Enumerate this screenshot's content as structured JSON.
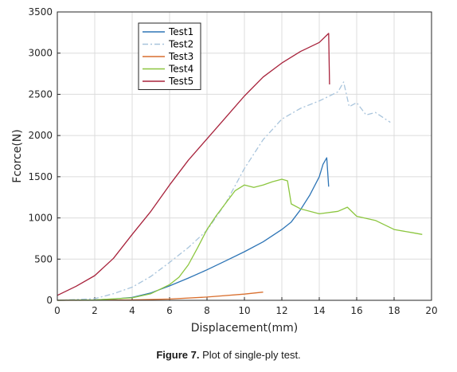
{
  "caption": {
    "label": "Figure 7.",
    "text": " Plot of single-ply test."
  },
  "chart_data": {
    "type": "line",
    "title": "",
    "xlabel": "Displacement(mm)",
    "ylabel": "Fcorce(N)",
    "xlim": [
      0,
      20
    ],
    "ylim": [
      0,
      3500
    ],
    "xticks": [
      0,
      2,
      4,
      6,
      8,
      10,
      12,
      14,
      16,
      18,
      20
    ],
    "yticks": [
      0,
      500,
      1000,
      1500,
      2000,
      2500,
      3000,
      3500
    ],
    "grid": true,
    "legend": "top-left-inside",
    "series": [
      {
        "name": "Test1",
        "color": "#2e75b6",
        "dash": "solid",
        "x": [
          0,
          2,
          3,
          4,
          5,
          6,
          7,
          8,
          9,
          10,
          11,
          12,
          12.5,
          13,
          13.5,
          14,
          14.2,
          14.4,
          14.5
        ],
        "y": [
          0,
          5,
          15,
          35,
          90,
          175,
          270,
          370,
          480,
          590,
          710,
          860,
          950,
          1100,
          1280,
          1500,
          1650,
          1730,
          1380
        ]
      },
      {
        "name": "Test2",
        "color": "#a8c4dc",
        "dash": "dashdot",
        "x": [
          0,
          2,
          3,
          4,
          5,
          6,
          7,
          8,
          9,
          10,
          11,
          12,
          13,
          14,
          15,
          15.3,
          15.6,
          16,
          16.5,
          17,
          17.8
        ],
        "y": [
          0,
          20,
          80,
          160,
          290,
          460,
          640,
          850,
          1180,
          1600,
          1950,
          2200,
          2330,
          2420,
          2530,
          2650,
          2350,
          2400,
          2250,
          2280,
          2160
        ]
      },
      {
        "name": "Test3",
        "color": "#d96f2e",
        "dash": "solid",
        "x": [
          0,
          2,
          4,
          6,
          8,
          10,
          11
        ],
        "y": [
          0,
          2,
          5,
          15,
          40,
          75,
          100
        ]
      },
      {
        "name": "Test4",
        "color": "#8cc63f",
        "dash": "solid",
        "x": [
          0,
          2,
          4,
          5,
          6,
          6.5,
          7,
          7.5,
          8,
          8.5,
          9,
          9.5,
          10,
          10.5,
          11,
          11.5,
          12,
          12.3,
          12.5,
          13,
          14,
          15,
          15.5,
          16,
          17,
          18,
          19,
          19.5
        ],
        "y": [
          0,
          5,
          30,
          80,
          190,
          280,
          430,
          640,
          860,
          1030,
          1180,
          1330,
          1400,
          1370,
          1400,
          1440,
          1470,
          1450,
          1170,
          1110,
          1050,
          1080,
          1130,
          1020,
          970,
          860,
          820,
          800
        ]
      },
      {
        "name": "Test5",
        "color": "#a8233c",
        "dash": "solid",
        "x": [
          0,
          1,
          2,
          3,
          4,
          5,
          6,
          7,
          8,
          9,
          10,
          11,
          12,
          13,
          14,
          14.5,
          14.55
        ],
        "y": [
          60,
          170,
          300,
          510,
          800,
          1080,
          1400,
          1700,
          1960,
          2220,
          2480,
          2710,
          2880,
          3020,
          3130,
          3240,
          2620
        ]
      }
    ]
  }
}
